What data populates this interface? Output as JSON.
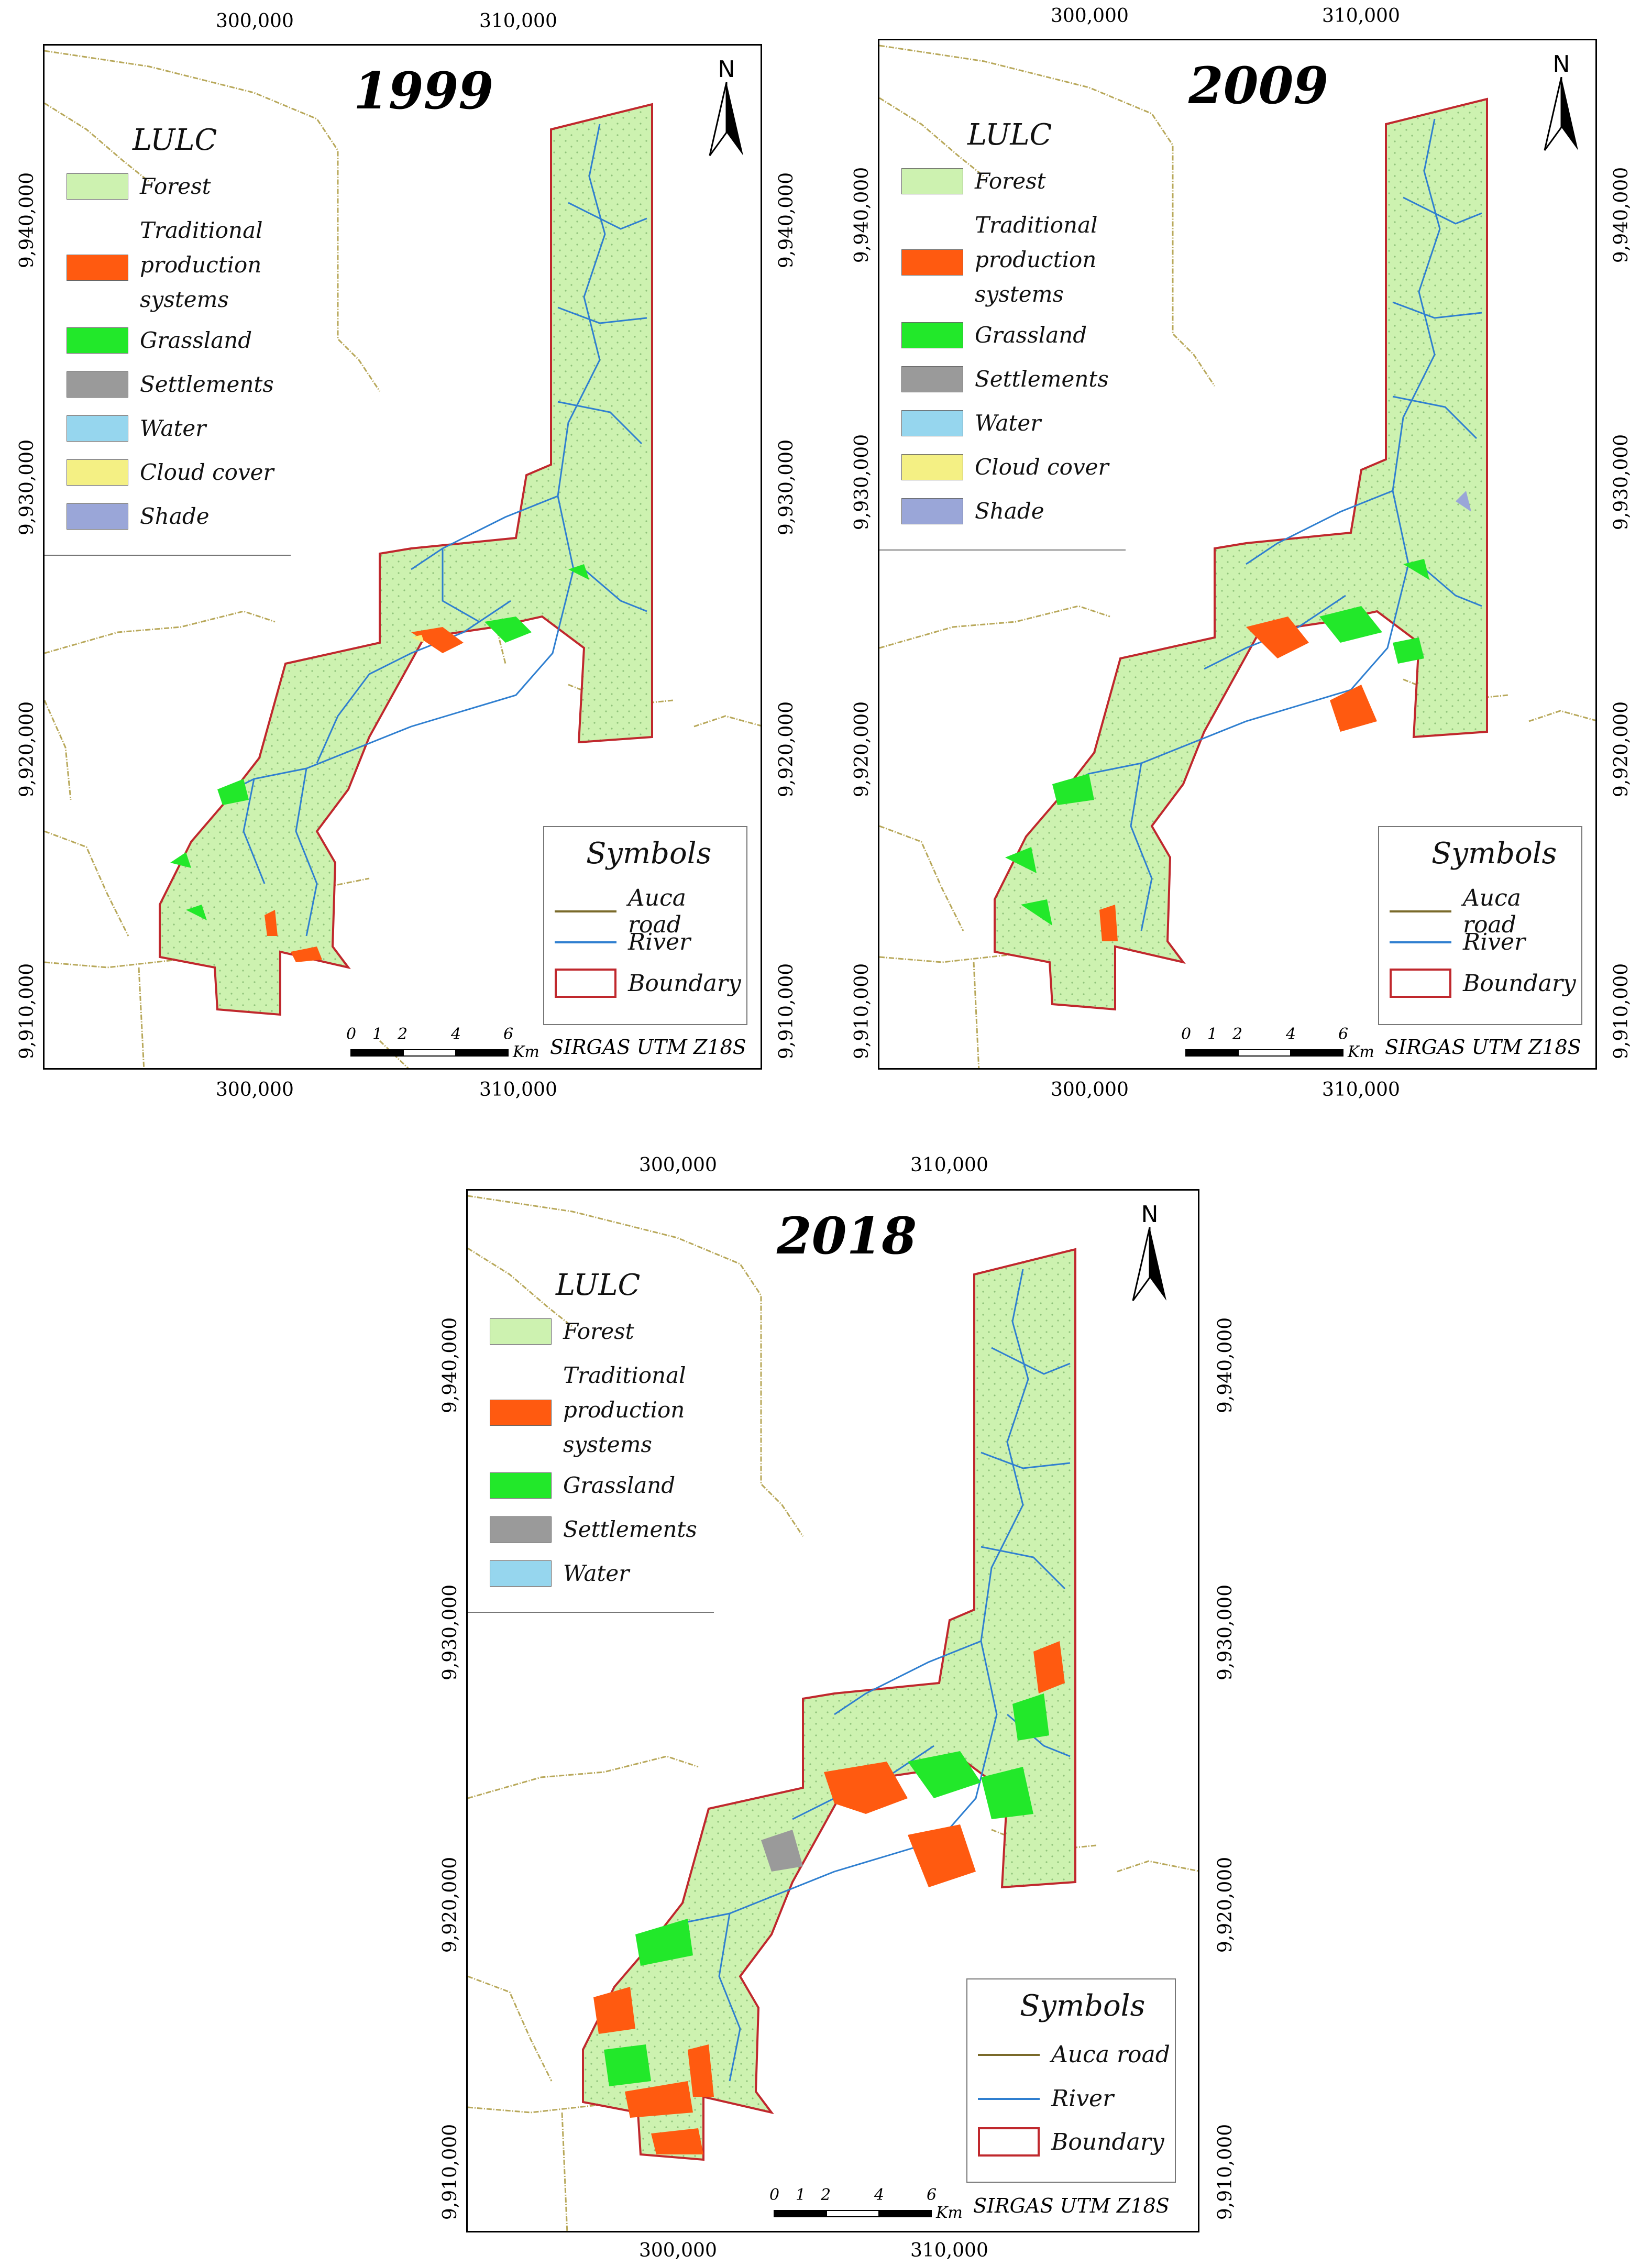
{
  "maps": [
    {
      "year": "1999",
      "legend": {
        "title": "LULC",
        "items": [
          {
            "label": "Forest",
            "color": "#cdf2b0"
          },
          {
            "label": "Traditional\nproduction\nsystems",
            "color": "#ff5a10"
          },
          {
            "label": "Grassland",
            "color": "#22e82a"
          },
          {
            "label": "Settlements",
            "color": "#9a9a9a"
          },
          {
            "label": "Water",
            "color": "#96d6ee"
          },
          {
            "label": "Cloud cover",
            "color": "#f4f084"
          },
          {
            "label": "Shade",
            "color": "#9aa6d8"
          }
        ]
      },
      "symbols": {
        "title": "Symbols",
        "items": [
          {
            "label": "Auca road",
            "type": "line",
            "color": "#7a6a2a"
          },
          {
            "label": "River",
            "type": "line",
            "color": "#2f7fd0"
          },
          {
            "label": "Boundary",
            "type": "box",
            "color": "#c0282d"
          }
        ]
      },
      "x_ticks": [
        "300,000",
        "310,000"
      ],
      "y_ticks": [
        "9,940,000",
        "9,930,000",
        "9,920,000",
        "9,910,000"
      ],
      "scale_labels": [
        "0",
        "1",
        "2",
        "4",
        "6"
      ],
      "scale_unit": "Km",
      "crs": "SIRGAS UTM Z18S",
      "north": "N"
    },
    {
      "year": "2009",
      "legend": {
        "title": "LULC",
        "items": [
          {
            "label": "Forest",
            "color": "#cdf2b0"
          },
          {
            "label": "Traditional\nproduction\nsystems",
            "color": "#ff5a10"
          },
          {
            "label": "Grassland",
            "color": "#22e82a"
          },
          {
            "label": "Settlements",
            "color": "#9a9a9a"
          },
          {
            "label": "Water",
            "color": "#96d6ee"
          },
          {
            "label": "Cloud cover",
            "color": "#f4f084"
          },
          {
            "label": "Shade",
            "color": "#9aa6d8"
          }
        ]
      },
      "symbols": {
        "title": "Symbols",
        "items": [
          {
            "label": "Auca road",
            "type": "line",
            "color": "#7a6a2a"
          },
          {
            "label": "River",
            "type": "line",
            "color": "#2f7fd0"
          },
          {
            "label": "Boundary",
            "type": "box",
            "color": "#c0282d"
          }
        ]
      },
      "x_ticks": [
        "300,000",
        "310,000"
      ],
      "y_ticks": [
        "9,940,000",
        "9,930,000",
        "9,920,000",
        "9,910,000"
      ],
      "scale_labels": [
        "0",
        "1",
        "2",
        "4",
        "6"
      ],
      "scale_unit": "Km",
      "crs": "SIRGAS UTM Z18S",
      "north": "N"
    },
    {
      "year": "2018",
      "legend": {
        "title": "LULC",
        "items": [
          {
            "label": "Forest",
            "color": "#cdf2b0"
          },
          {
            "label": "Traditional\nproduction\nsystems",
            "color": "#ff5a10"
          },
          {
            "label": "Grassland",
            "color": "#22e82a"
          },
          {
            "label": "Settlements",
            "color": "#9a9a9a"
          },
          {
            "label": "Water",
            "color": "#96d6ee"
          }
        ]
      },
      "symbols": {
        "title": "Symbols",
        "items": [
          {
            "label": "Auca road",
            "type": "line",
            "color": "#7a6a2a"
          },
          {
            "label": "River",
            "type": "line",
            "color": "#2f7fd0"
          },
          {
            "label": "Boundary",
            "type": "box",
            "color": "#c0282d"
          }
        ]
      },
      "x_ticks": [
        "300,000",
        "310,000"
      ],
      "y_ticks": [
        "9,940,000",
        "9,930,000",
        "9,920,000",
        "9,910,000"
      ],
      "scale_labels": [
        "0",
        "1",
        "2",
        "4",
        "6"
      ],
      "scale_unit": "Km",
      "crs": "SIRGAS UTM Z18S",
      "north": "N"
    }
  ]
}
